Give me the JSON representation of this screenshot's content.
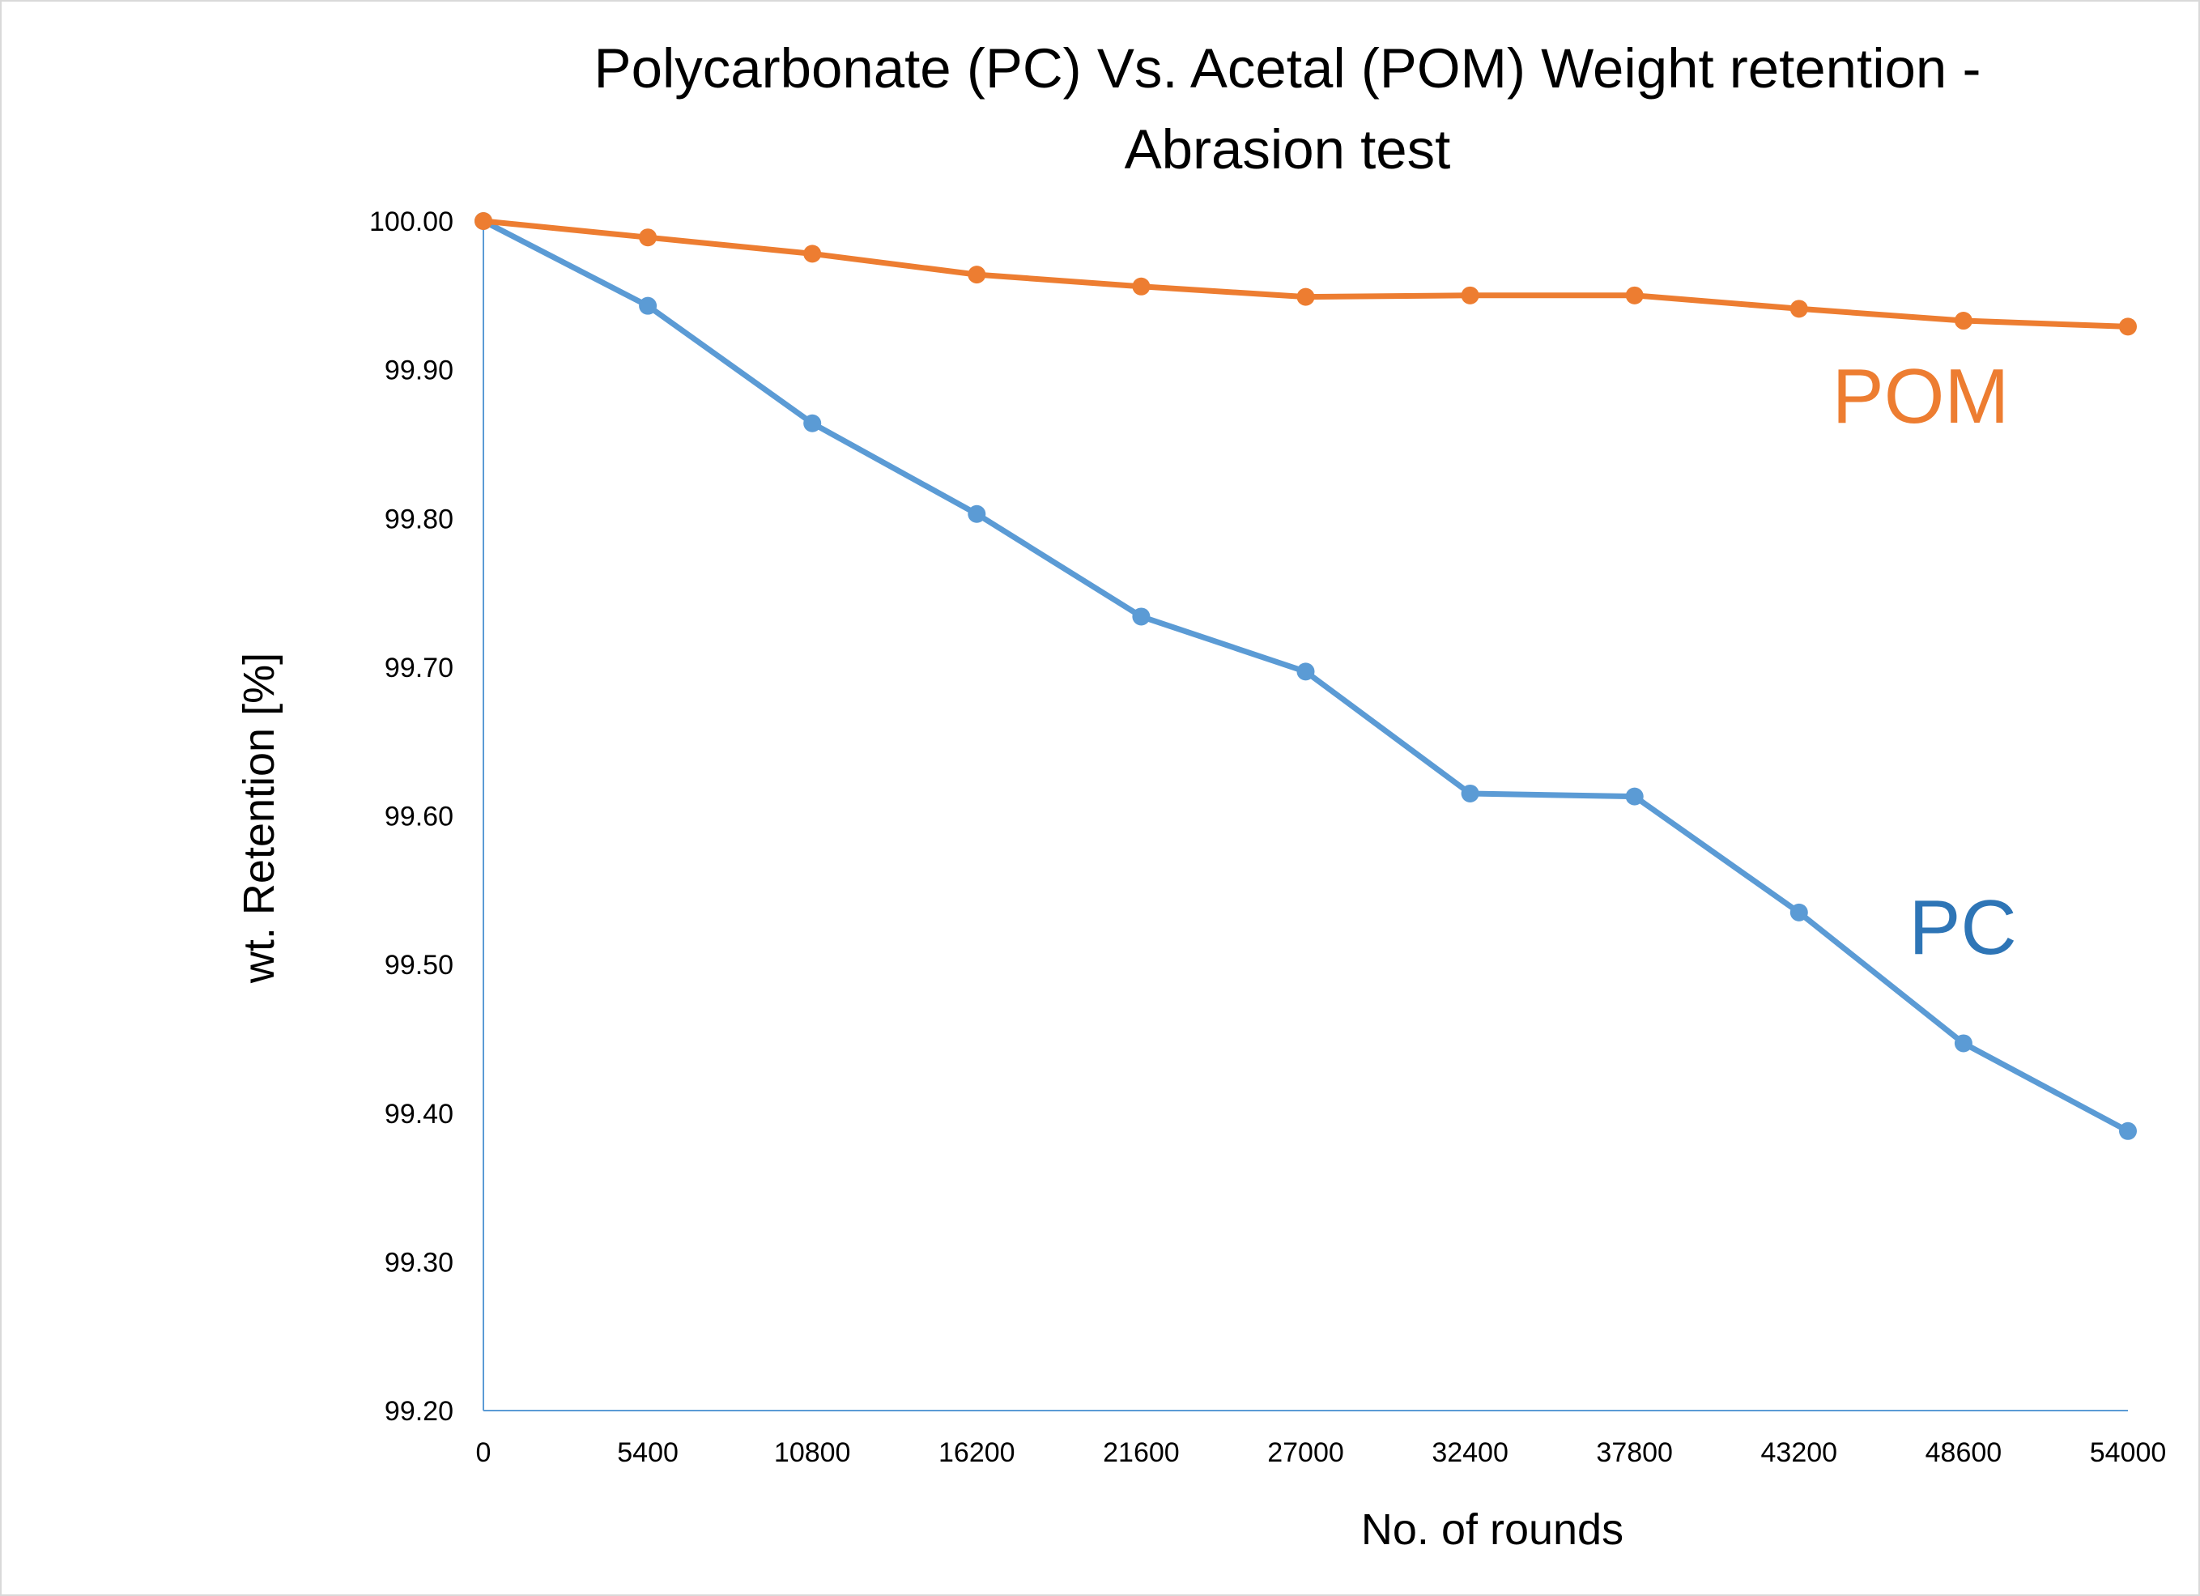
{
  "chart_data": {
    "type": "line",
    "title_lines": [
      "Polycarbonate (PC) Vs. Acetal (POM) Weight retention -",
      "Abrasion test"
    ],
    "xlabel": "No. of rounds",
    "ylabel": "wt. Retention [%]",
    "categories": [
      "0",
      "5400",
      "10800",
      "16200",
      "21600",
      "27000",
      "32400",
      "37800",
      "43200",
      "48600",
      "54000"
    ],
    "y_ticks": [
      "99.20",
      "99.30",
      "99.40",
      "99.50",
      "99.60",
      "99.70",
      "99.80",
      "99.90",
      "100.00"
    ],
    "ylim": [
      99.2,
      100.0
    ],
    "grid": false,
    "legend": "none",
    "series": [
      {
        "name": "PC",
        "color": "#5B9BD5",
        "label_color": "#2E75B6",
        "values": [
          100.0,
          99.943,
          99.864,
          99.803,
          99.734,
          99.697,
          99.615,
          99.613,
          99.535,
          99.447,
          99.388
        ]
      },
      {
        "name": "POM",
        "color": "#ED7D31",
        "label_color": "#ED7D31",
        "values": [
          100.0,
          99.989,
          99.978,
          99.964,
          99.956,
          99.949,
          99.95,
          99.95,
          99.941,
          99.933,
          99.929
        ]
      }
    ]
  }
}
